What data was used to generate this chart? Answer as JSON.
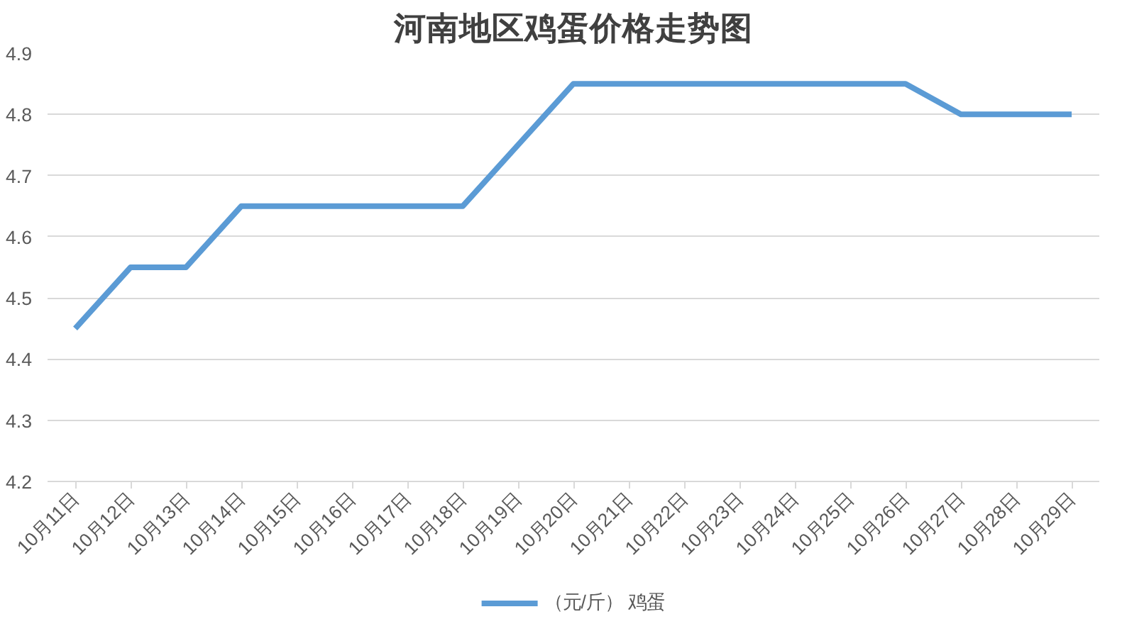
{
  "chart_data": {
    "type": "line",
    "title": "河南地区鸡蛋价格走势图",
    "categories": [
      "10月11日",
      "10月12日",
      "10月13日",
      "10月14日",
      "10月15日",
      "10月16日",
      "10月17日",
      "10月18日",
      "10月19日",
      "10月20日",
      "10月21日",
      "10月22日",
      "10月23日",
      "10月24日",
      "10月25日",
      "10月26日",
      "10月27日",
      "10月28日",
      "10月29日"
    ],
    "series": [
      {
        "name": "（元/斤） 鸡蛋",
        "color": "#5b9bd5",
        "values": [
          4.45,
          4.55,
          4.55,
          4.65,
          4.65,
          4.65,
          4.65,
          4.65,
          4.75,
          4.85,
          4.85,
          4.85,
          4.85,
          4.85,
          4.85,
          4.85,
          4.8,
          4.8,
          4.8
        ]
      }
    ],
    "ylim": [
      4.2,
      4.9
    ],
    "yticks": [
      4.2,
      4.3,
      4.4,
      4.5,
      4.6,
      4.7,
      4.8,
      4.9
    ],
    "grid": "y",
    "legend": "bottom",
    "marker": "none",
    "line_style": "solid"
  }
}
